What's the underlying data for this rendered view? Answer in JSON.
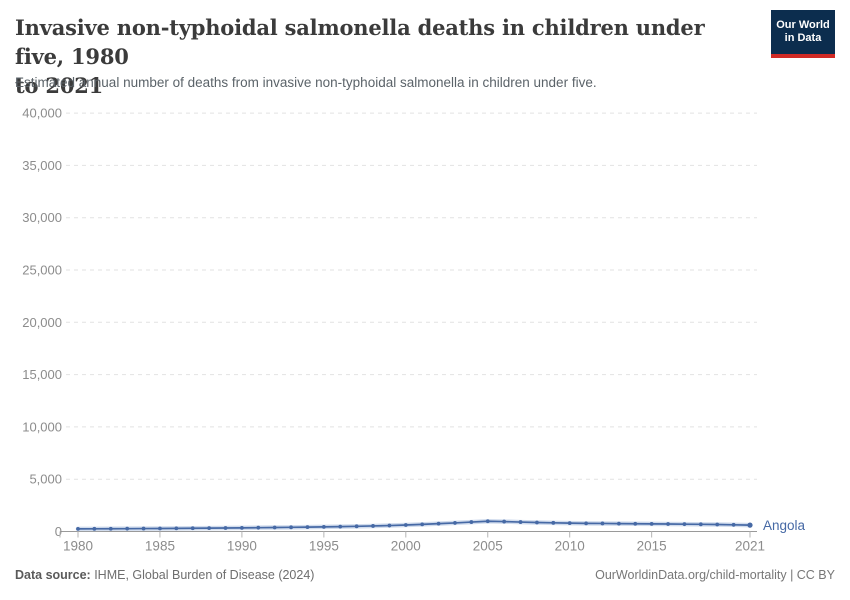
{
  "header": {
    "title_line1": "Invasive non-typhoidal salmonella deaths in children under five, 1980",
    "title_line2": "to 2021",
    "subtitle": "Estimated annual number of deaths from invasive non-typhoidal salmonella in children under five."
  },
  "logo": {
    "line1": "Our World",
    "line2": "in Data",
    "bg_color": "#0c2d4e",
    "bar_color": "#d12a25"
  },
  "footer": {
    "source_label": "Data source:",
    "source_value": " IHME, Global Burden of Disease (2024)",
    "credit": "OurWorldinData.org/child-mortality | CC BY"
  },
  "chart_data": {
    "type": "line",
    "title": "Invasive non-typhoidal salmonella deaths in children under five, 1980 to 2021",
    "subtitle": "Estimated annual number of deaths from invasive non-typhoidal salmonella in children under five.",
    "xlabel": "",
    "ylabel": "",
    "ylim": [
      0,
      40000
    ],
    "yticks": [
      0,
      5000,
      10000,
      15000,
      20000,
      25000,
      30000,
      35000,
      40000
    ],
    "ytick_labels": [
      "0",
      "5,000",
      "10,000",
      "15,000",
      "20,000",
      "25,000",
      "30,000",
      "35,000",
      "40,000"
    ],
    "xticks": [
      1980,
      1985,
      1990,
      1995,
      2000,
      2005,
      2010,
      2015,
      2021
    ],
    "grid": true,
    "grid_style": "dashed",
    "legend_position": "end-of-line",
    "x": [
      1980,
      1981,
      1982,
      1983,
      1984,
      1985,
      1986,
      1987,
      1988,
      1989,
      1990,
      1991,
      1992,
      1993,
      1994,
      1995,
      1996,
      1997,
      1998,
      1999,
      2000,
      2001,
      2002,
      2003,
      2004,
      2005,
      2006,
      2007,
      2008,
      2009,
      2010,
      2011,
      2012,
      2013,
      2014,
      2015,
      2016,
      2017,
      2018,
      2019,
      2020,
      2021
    ],
    "series": [
      {
        "name": "Angola",
        "color": "#4669a5",
        "values": [
          250,
          255,
          260,
          270,
          280,
          290,
          300,
          310,
          320,
          335,
          350,
          365,
          380,
          400,
          420,
          440,
          465,
          495,
          530,
          570,
          620,
          680,
          750,
          820,
          900,
          980,
          950,
          900,
          860,
          830,
          800,
          780,
          770,
          755,
          740,
          730,
          715,
          700,
          685,
          670,
          640,
          610
        ]
      }
    ],
    "colors": {
      "gridline": "#e2e2e2",
      "axis_line": "#9a9a9a",
      "tick_mark": "#b5b5b5",
      "tick_label": "#8c8c8c",
      "line_halo": "#c9d6ea"
    }
  }
}
